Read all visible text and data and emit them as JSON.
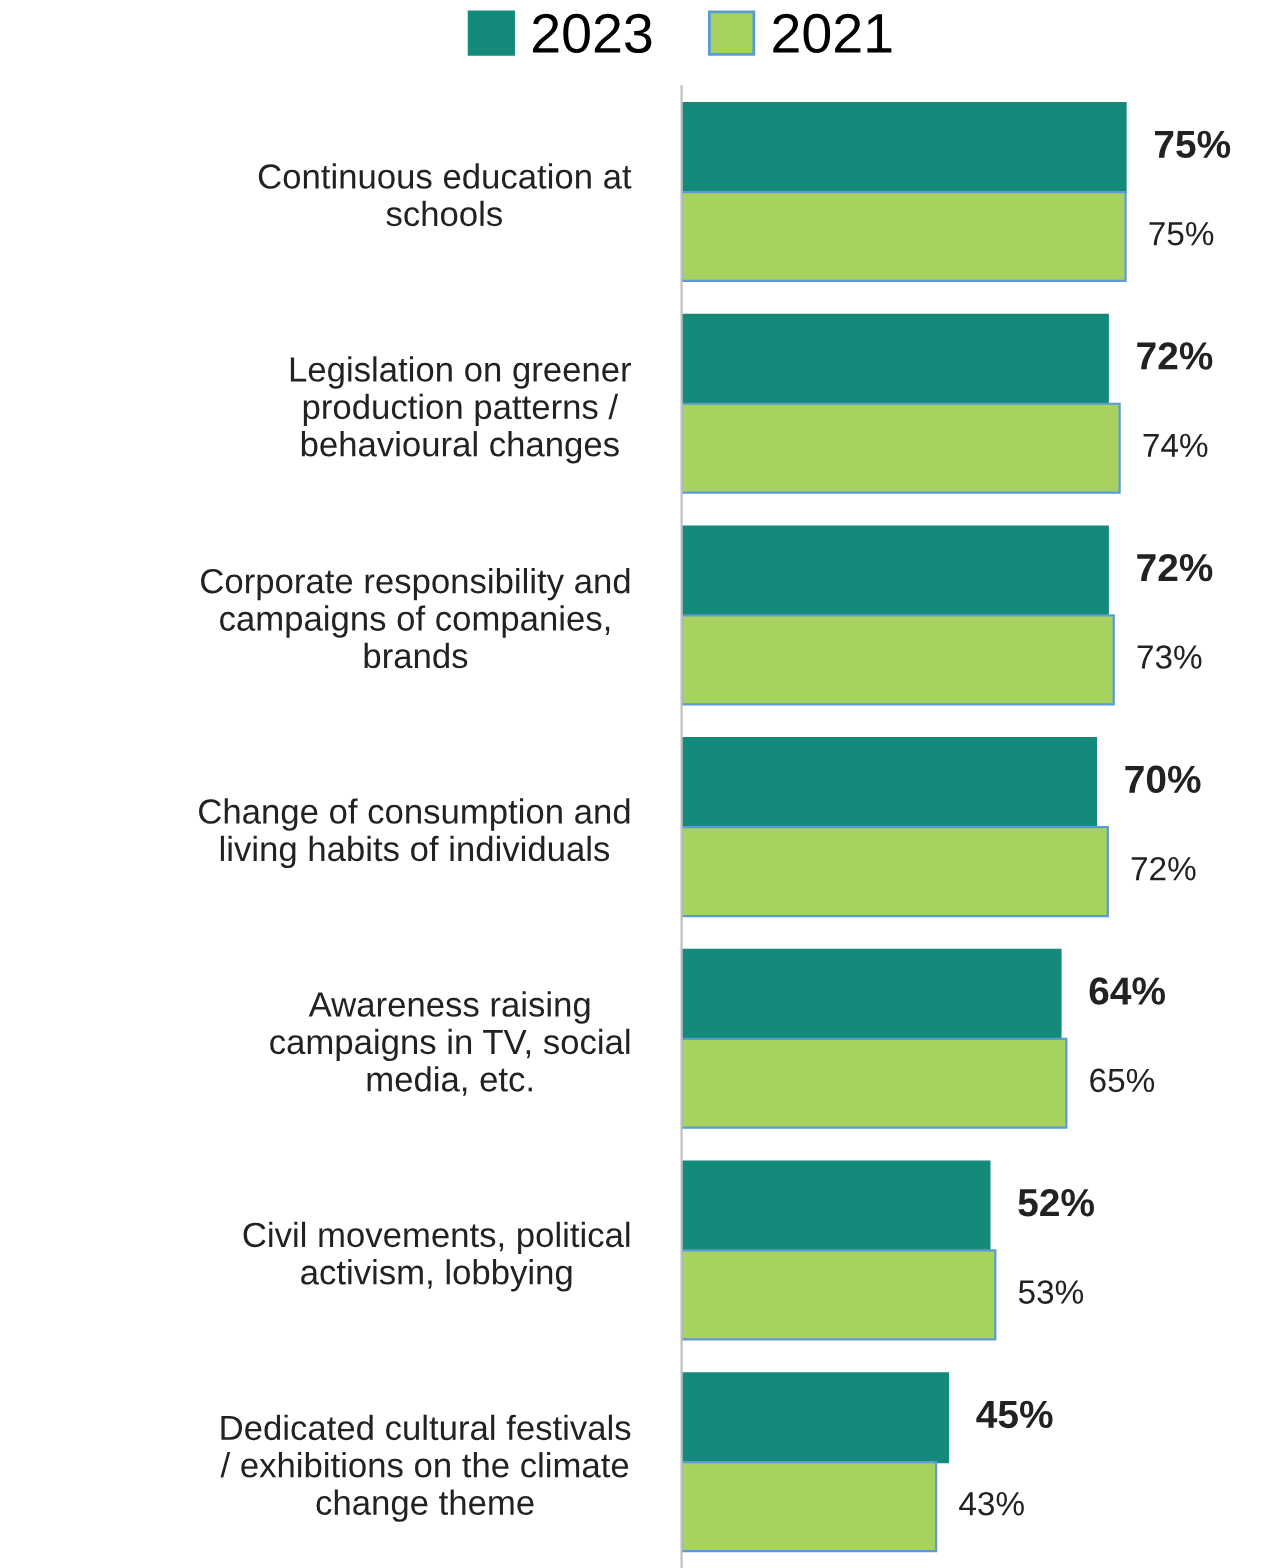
{
  "chart_data": {
    "type": "bar",
    "orientation": "horizontal",
    "categories": [
      "Continuous education at\nschools",
      "Legislation on greener\nproduction patterns /\nbehavioural changes",
      "Corporate responsibility and\ncampaigns of companies,\nbrands",
      "Change of consumption and\nliving habits of individuals",
      "Awareness raising\ncampaigns in TV, social\nmedia, etc.",
      "Civil movements, political\nactivism, lobbying",
      "Dedicated cultural festivals\n/ exhibitions on the climate\nchange theme"
    ],
    "series": [
      {
        "name": "2023",
        "color": "#138a7a",
        "values": [
          75,
          72,
          72,
          70,
          64,
          52,
          45
        ],
        "value_labels": [
          "75%",
          "72%",
          "72%",
          "70%",
          "64%",
          "52%",
          "45%"
        ]
      },
      {
        "name": "2021",
        "color": "#a8d25f",
        "values": [
          75,
          74,
          73,
          72,
          65,
          53,
          43
        ],
        "value_labels": [
          "75%",
          "74%",
          "73%",
          "72%",
          "65%",
          "53%",
          "43%"
        ]
      }
    ],
    "tick_labels": "y",
    "legend": "top",
    "grid": false
  }
}
